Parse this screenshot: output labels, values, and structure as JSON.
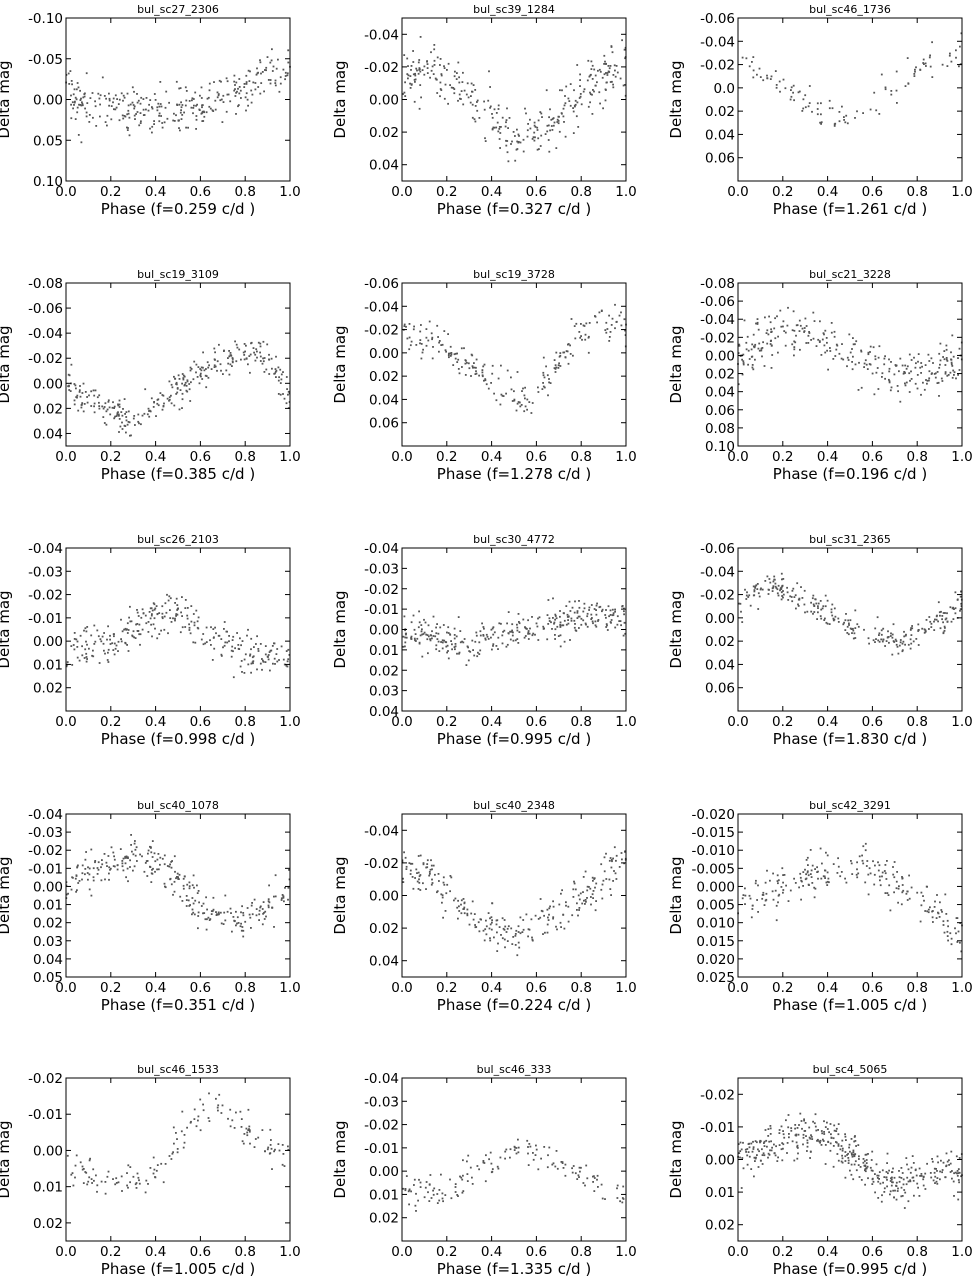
{
  "chart_data": [
    {
      "type": "scatter",
      "title": "bul_sc27_2306",
      "xlabel": "Phase (f=0.259 c/d )",
      "ylabel": "Delta mag",
      "xlim": [
        0,
        1
      ],
      "ylim": [
        0.1,
        -0.1
      ],
      "inverted_y": true,
      "yticks": [
        -0.1,
        -0.05,
        0.0,
        0.05,
        0.1
      ],
      "ytick_labels": [
        "-0.10",
        "-0.05",
        "0.00",
        "0.05",
        "0.10"
      ],
      "xticks": [
        0,
        0.2,
        0.4,
        0.6,
        0.8,
        1.0
      ],
      "xtick_labels": [
        "0.0",
        "0.2",
        "0.4",
        "0.6",
        "0.8",
        "1.0"
      ],
      "n_points": 320,
      "seed": 11,
      "profile": [
        [
          0,
          -0.01
        ],
        [
          0.15,
          0.01
        ],
        [
          0.35,
          0.02
        ],
        [
          0.55,
          0.01
        ],
        [
          0.75,
          -0.01
        ],
        [
          0.9,
          -0.035
        ],
        [
          1,
          -0.03
        ]
      ],
      "noise": 0.025
    },
    {
      "type": "scatter",
      "title": "bul_sc39_1284",
      "xlabel": "Phase (f=0.327 c/d )",
      "ylabel": "Delta mag",
      "xlim": [
        0,
        1
      ],
      "ylim": [
        0.05,
        -0.05
      ],
      "inverted_y": true,
      "yticks": [
        -0.04,
        -0.02,
        0.0,
        0.02,
        0.04
      ],
      "ytick_labels": [
        "-0.04",
        "-0.02",
        "0.00",
        "0.02",
        "0.04"
      ],
      "xticks": [
        0,
        0.2,
        0.4,
        0.6,
        0.8,
        1.0
      ],
      "xtick_labels": [
        "0.0",
        "0.2",
        "0.4",
        "0.6",
        "0.8",
        "1.0"
      ],
      "n_points": 330,
      "seed": 23,
      "profile": [
        [
          0,
          -0.01
        ],
        [
          0.12,
          -0.02
        ],
        [
          0.3,
          0.0
        ],
        [
          0.5,
          0.025
        ],
        [
          0.65,
          0.015
        ],
        [
          0.85,
          -0.01
        ],
        [
          1,
          -0.02
        ]
      ],
      "noise": 0.013
    },
    {
      "type": "scatter",
      "title": "bul_sc46_1736",
      "xlabel": "Phase (f=1.261 c/d )",
      "ylabel": "Delta mag",
      "xlim": [
        0,
        1
      ],
      "ylim": [
        0.08,
        -0.06
      ],
      "inverted_y": true,
      "yticks": [
        -0.06,
        -0.04,
        -0.02,
        0.0,
        0.02,
        0.04,
        0.06
      ],
      "ytick_labels": [
        "-0.06",
        "-0.04",
        "-0.02",
        "0.0",
        "0.02",
        "0.04",
        "0.06"
      ],
      "xticks": [
        0,
        0.2,
        0.4,
        0.6,
        0.8,
        1.0
      ],
      "xtick_labels": [
        "0.0",
        "0.2",
        "0.4",
        "0.6",
        "0.8",
        "1.0"
      ],
      "n_points": 110,
      "seed": 37,
      "profile": [
        [
          0,
          -0.025
        ],
        [
          0.15,
          -0.01
        ],
        [
          0.3,
          0.015
        ],
        [
          0.45,
          0.025
        ],
        [
          0.6,
          0.01
        ],
        [
          0.75,
          -0.01
        ],
        [
          0.9,
          -0.025
        ],
        [
          1,
          -0.03
        ]
      ],
      "noise": 0.012
    },
    {
      "type": "scatter",
      "title": "bul_sc19_3109",
      "xlabel": "Phase (f=0.385 c/d )",
      "ylabel": "Delta mag",
      "xlim": [
        0,
        1
      ],
      "ylim": [
        0.05,
        -0.08
      ],
      "inverted_y": true,
      "yticks": [
        -0.08,
        -0.06,
        -0.04,
        -0.02,
        0.0,
        0.02,
        0.04
      ],
      "ytick_labels": [
        "-0.08",
        "-0.06",
        "-0.04",
        "-0.02",
        "0.00",
        "0.02",
        "0.04"
      ],
      "xticks": [
        0,
        0.2,
        0.4,
        0.6,
        0.8,
        1.0
      ],
      "xtick_labels": [
        "0.0",
        "0.2",
        "0.4",
        "0.6",
        "0.8",
        "1.0"
      ],
      "n_points": 310,
      "seed": 41,
      "profile": [
        [
          0,
          0.0
        ],
        [
          0.15,
          0.02
        ],
        [
          0.3,
          0.028
        ],
        [
          0.45,
          0.01
        ],
        [
          0.6,
          -0.01
        ],
        [
          0.75,
          -0.025
        ],
        [
          0.9,
          -0.02
        ],
        [
          1,
          0.01
        ]
      ],
      "noise": 0.012
    },
    {
      "type": "scatter",
      "title": "bul_sc19_3728",
      "xlabel": "Phase (f=1.278 c/d )",
      "ylabel": "Delta mag",
      "xlim": [
        0,
        1
      ],
      "ylim": [
        0.08,
        -0.06
      ],
      "inverted_y": true,
      "yticks": [
        -0.06,
        -0.04,
        -0.02,
        0.0,
        0.02,
        0.04,
        0.06
      ],
      "ytick_labels": [
        "-0.06",
        "-0.04",
        "-0.02",
        "0.00",
        "0.02",
        "0.04",
        "0.06"
      ],
      "xticks": [
        0,
        0.2,
        0.4,
        0.6,
        0.8,
        1.0
      ],
      "xtick_labels": [
        "0.0",
        "0.2",
        "0.4",
        "0.6",
        "0.8",
        "1.0"
      ],
      "n_points": 220,
      "seed": 53,
      "profile": [
        [
          0,
          -0.015
        ],
        [
          0.15,
          -0.01
        ],
        [
          0.3,
          0.01
        ],
        [
          0.45,
          0.03
        ],
        [
          0.58,
          0.04
        ],
        [
          0.72,
          0.0
        ],
        [
          0.88,
          -0.03
        ],
        [
          1,
          -0.02
        ]
      ],
      "noise": 0.013
    },
    {
      "type": "scatter",
      "title": "bul_sc21_3228",
      "xlabel": "Phase (f=0.196 c/d )",
      "ylabel": "Delta mag",
      "xlim": [
        0,
        1
      ],
      "ylim": [
        0.1,
        -0.08
      ],
      "inverted_y": true,
      "yticks": [
        -0.08,
        -0.06,
        -0.04,
        -0.02,
        0.0,
        0.02,
        0.04,
        0.06,
        0.08,
        0.1
      ],
      "ytick_labels": [
        "-0.08",
        "-0.06",
        "-0.04",
        "-0.02",
        "0.00",
        "0.02",
        "0.04",
        "0.06",
        "0.08",
        "0.10"
      ],
      "xticks": [
        0,
        0.2,
        0.4,
        0.6,
        0.8,
        1.0
      ],
      "xtick_labels": [
        "0.0",
        "0.2",
        "0.4",
        "0.6",
        "0.8",
        "1.0"
      ],
      "n_points": 300,
      "seed": 67,
      "profile": [
        [
          0,
          0.0
        ],
        [
          0.15,
          -0.02
        ],
        [
          0.3,
          -0.03
        ],
        [
          0.5,
          0.0
        ],
        [
          0.7,
          0.02
        ],
        [
          0.85,
          0.02
        ],
        [
          1,
          0.0
        ]
      ],
      "noise": 0.02
    },
    {
      "type": "scatter",
      "title": "bul_sc26_2103",
      "xlabel": "Phase (f=0.998 c/d )",
      "ylabel": "Delta mag",
      "xlim": [
        0,
        1
      ],
      "ylim": [
        0.03,
        -0.04
      ],
      "inverted_y": true,
      "yticks": [
        -0.04,
        -0.03,
        -0.02,
        -0.01,
        0.0,
        0.01,
        0.02
      ],
      "ytick_labels": [
        "-0.04",
        "-0.03",
        "-0.02",
        "-0.01",
        "0.00",
        "0.01",
        "0.02"
      ],
      "xticks": [
        0,
        0.2,
        0.4,
        0.6,
        0.8,
        1.0
      ],
      "xtick_labels": [
        "0.0",
        "0.2",
        "0.4",
        "0.6",
        "0.8",
        "1.0"
      ],
      "n_points": 300,
      "seed": 79,
      "profile": [
        [
          0,
          0.005
        ],
        [
          0.2,
          0.0
        ],
        [
          0.35,
          -0.008
        ],
        [
          0.5,
          -0.013
        ],
        [
          0.65,
          -0.002
        ],
        [
          0.85,
          0.007
        ],
        [
          1,
          0.005
        ]
      ],
      "noise": 0.007
    },
    {
      "type": "scatter",
      "title": "bul_sc30_4772",
      "xlabel": "Phase (f=0.995 c/d )",
      "ylabel": "Delta mag",
      "xlim": [
        0,
        1
      ],
      "ylim": [
        0.04,
        -0.04
      ],
      "inverted_y": true,
      "yticks": [
        -0.04,
        -0.03,
        -0.02,
        -0.01,
        0.0,
        0.01,
        0.02,
        0.03,
        0.04
      ],
      "ytick_labels": [
        "-0.04",
        "-0.03",
        "-0.02",
        "-0.01",
        "0.00",
        "0.01",
        "0.02",
        "0.03",
        "0.04"
      ],
      "xticks": [
        0,
        0.2,
        0.4,
        0.6,
        0.8,
        1.0
      ],
      "xtick_labels": [
        "0.0",
        "0.2",
        "0.4",
        "0.6",
        "0.8",
        "1.0"
      ],
      "n_points": 330,
      "seed": 83,
      "profile": [
        [
          0,
          0.0
        ],
        [
          0.25,
          0.008
        ],
        [
          0.45,
          0.003
        ],
        [
          0.65,
          -0.002
        ],
        [
          0.85,
          -0.008
        ],
        [
          1,
          -0.004
        ]
      ],
      "noise": 0.007
    },
    {
      "type": "scatter",
      "title": "bul_sc31_2365",
      "xlabel": "Phase (f=1.830 c/d )",
      "ylabel": "Delta mag",
      "xlim": [
        0,
        1
      ],
      "ylim": [
        0.08,
        -0.06
      ],
      "inverted_y": true,
      "yticks": [
        -0.06,
        -0.04,
        -0.02,
        0.0,
        0.02,
        0.04,
        0.06
      ],
      "ytick_labels": [
        "-0.06",
        "-0.04",
        "-0.02",
        "0.00",
        "0.02",
        "0.04",
        "0.06"
      ],
      "xticks": [
        0,
        0.2,
        0.4,
        0.6,
        0.8,
        1.0
      ],
      "xtick_labels": [
        "0.0",
        "0.2",
        "0.4",
        "0.6",
        "0.8",
        "1.0"
      ],
      "n_points": 280,
      "seed": 97,
      "profile": [
        [
          0,
          -0.015
        ],
        [
          0.15,
          -0.028
        ],
        [
          0.35,
          -0.01
        ],
        [
          0.55,
          0.01
        ],
        [
          0.72,
          0.02
        ],
        [
          0.88,
          0.005
        ],
        [
          1,
          -0.015
        ]
      ],
      "noise": 0.011
    },
    {
      "type": "scatter",
      "title": "bul_sc40_1078",
      "xlabel": "Phase (f=0.351 c/d )",
      "ylabel": "Delta mag",
      "xlim": [
        0,
        1
      ],
      "ylim": [
        0.05,
        -0.04
      ],
      "inverted_y": true,
      "yticks": [
        -0.04,
        -0.03,
        -0.02,
        -0.01,
        0.0,
        0.01,
        0.02,
        0.03,
        0.04,
        0.05
      ],
      "ytick_labels": [
        "-0.04",
        "-0.03",
        "-0.02",
        "-0.01",
        "0.00",
        "0.01",
        "0.02",
        "0.03",
        "0.04",
        "0.05"
      ],
      "xticks": [
        0,
        0.2,
        0.4,
        0.6,
        0.8,
        1.0
      ],
      "xtick_labels": [
        "0.0",
        "0.2",
        "0.4",
        "0.6",
        "0.8",
        "1.0"
      ],
      "n_points": 290,
      "seed": 101,
      "profile": [
        [
          0,
          0.0
        ],
        [
          0.15,
          -0.01
        ],
        [
          0.3,
          -0.018
        ],
        [
          0.45,
          -0.01
        ],
        [
          0.6,
          0.012
        ],
        [
          0.75,
          0.02
        ],
        [
          0.9,
          0.012
        ],
        [
          1,
          0.0
        ]
      ],
      "noise": 0.009
    },
    {
      "type": "scatter",
      "title": "bul_sc40_2348",
      "xlabel": "Phase (f=0.224 c/d )",
      "ylabel": "Delta mag",
      "xlim": [
        0,
        1
      ],
      "ylim": [
        0.05,
        -0.05
      ],
      "inverted_y": true,
      "yticks": [
        -0.04,
        -0.02,
        0.0,
        0.02,
        0.04
      ],
      "ytick_labels": [
        "-0.04",
        "-0.02",
        "0.00",
        "0.02",
        "0.04"
      ],
      "xticks": [
        0,
        0.2,
        0.4,
        0.6,
        0.8,
        1.0
      ],
      "xtick_labels": [
        "0.0",
        "0.2",
        "0.4",
        "0.6",
        "0.8",
        "1.0"
      ],
      "n_points": 270,
      "seed": 113,
      "profile": [
        [
          0,
          -0.02
        ],
        [
          0.15,
          -0.01
        ],
        [
          0.35,
          0.018
        ],
        [
          0.5,
          0.025
        ],
        [
          0.65,
          0.015
        ],
        [
          0.85,
          -0.005
        ],
        [
          1,
          -0.025
        ]
      ],
      "noise": 0.011
    },
    {
      "type": "scatter",
      "title": "bul_sc42_3291",
      "xlabel": "Phase (f=1.005 c/d )",
      "ylabel": "Delta mag",
      "xlim": [
        0,
        1
      ],
      "ylim": [
        0.025,
        -0.02
      ],
      "inverted_y": true,
      "yticks": [
        -0.02,
        -0.015,
        -0.01,
        -0.005,
        0.0,
        0.005,
        0.01,
        0.015,
        0.02,
        0.025
      ],
      "ytick_labels": [
        "-0.020",
        "-0.015",
        "-0.010",
        "-0.005",
        "0.000",
        "0.005",
        "0.010",
        "0.015",
        "0.020",
        "0.025"
      ],
      "xticks": [
        0,
        0.2,
        0.4,
        0.6,
        0.8,
        1.0
      ],
      "xtick_labels": [
        "0.0",
        "0.2",
        "0.4",
        "0.6",
        "0.8",
        "1.0"
      ],
      "n_points": 230,
      "seed": 127,
      "profile": [
        [
          0,
          0.006
        ],
        [
          0.2,
          0.0
        ],
        [
          0.35,
          -0.003
        ],
        [
          0.5,
          -0.006
        ],
        [
          0.7,
          -0.002
        ],
        [
          0.85,
          0.005
        ],
        [
          1,
          0.014
        ]
      ],
      "noise": 0.005
    },
    {
      "type": "scatter",
      "title": "bul_sc46_1533",
      "xlabel": "Phase (f=1.005 c/d )",
      "ylabel": "Delta mag",
      "xlim": [
        0,
        1
      ],
      "ylim": [
        0.025,
        -0.02
      ],
      "inverted_y": true,
      "yticks": [
        -0.02,
        -0.01,
        0.0,
        0.01,
        0.02
      ],
      "ytick_labels": [
        "-0.02",
        "-0.01",
        "0.00",
        "0.01",
        "0.02"
      ],
      "xticks": [
        0,
        0.2,
        0.4,
        0.6,
        0.8,
        1.0
      ],
      "xtick_labels": [
        "0.0",
        "0.2",
        "0.4",
        "0.6",
        "0.8",
        "1.0"
      ],
      "n_points": 150,
      "seed": 131,
      "profile": [
        [
          0,
          0.004
        ],
        [
          0.2,
          0.008
        ],
        [
          0.35,
          0.01
        ],
        [
          0.5,
          -0.002
        ],
        [
          0.62,
          -0.012
        ],
        [
          0.8,
          -0.006
        ],
        [
          1,
          0.004
        ]
      ],
      "noise": 0.004
    },
    {
      "type": "scatter",
      "title": "bul_sc46_333",
      "xlabel": "Phase (f=1.335 c/d )",
      "ylabel": "Delta mag",
      "xlim": [
        0,
        1
      ],
      "ylim": [
        0.03,
        -0.04
      ],
      "inverted_y": true,
      "yticks": [
        -0.04,
        -0.03,
        -0.02,
        -0.01,
        0.0,
        0.01,
        0.02
      ],
      "ytick_labels": [
        "-0.04",
        "-0.03",
        "-0.02",
        "-0.01",
        "0.00",
        "0.01",
        "0.02"
      ],
      "xticks": [
        0,
        0.2,
        0.4,
        0.6,
        0.8,
        1.0
      ],
      "xtick_labels": [
        "0.0",
        "0.2",
        "0.4",
        "0.6",
        "0.8",
        "1.0"
      ],
      "n_points": 150,
      "seed": 149,
      "profile": [
        [
          0,
          0.008
        ],
        [
          0.2,
          0.01
        ],
        [
          0.4,
          -0.005
        ],
        [
          0.55,
          -0.01
        ],
        [
          0.75,
          -0.002
        ],
        [
          0.9,
          0.006
        ],
        [
          1,
          0.012
        ]
      ],
      "noise": 0.006
    },
    {
      "type": "scatter",
      "title": "bul_sc4_5065",
      "xlabel": "Phase (f=0.995 c/d )",
      "ylabel": "Delta mag",
      "xlim": [
        0,
        1
      ],
      "ylim": [
        0.025,
        -0.025
      ],
      "inverted_y": true,
      "yticks": [
        -0.02,
        -0.01,
        0.0,
        0.01,
        0.02
      ],
      "ytick_labels": [
        "-0.02",
        "-0.01",
        "0.00",
        "0.01",
        "0.02"
      ],
      "xticks": [
        0,
        0.2,
        0.4,
        0.6,
        0.8,
        1.0
      ],
      "xtick_labels": [
        "0.0",
        "0.2",
        "0.4",
        "0.6",
        "0.8",
        "1.0"
      ],
      "n_points": 420,
      "seed": 157,
      "profile": [
        [
          0,
          0.0
        ],
        [
          0.2,
          -0.006
        ],
        [
          0.35,
          -0.008
        ],
        [
          0.5,
          -0.002
        ],
        [
          0.68,
          0.008
        ],
        [
          0.85,
          0.004
        ],
        [
          1,
          0.002
        ]
      ],
      "noise": 0.005
    }
  ],
  "colors": {
    "points": "#555555",
    "axes": "#000000",
    "background": "#ffffff"
  }
}
